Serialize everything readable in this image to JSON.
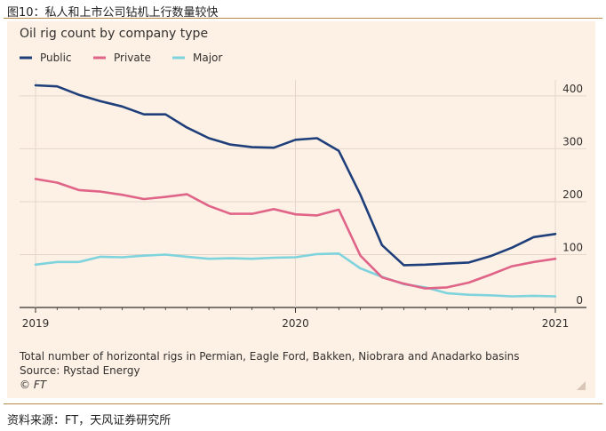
{
  "figure_caption": "图10：私人和上市公司钻机上行数量较快",
  "source_line": "资料来源：FT，天风证券研究所",
  "colors": {
    "panel_bg": "#fdf1e6",
    "rule": "#b58a4a",
    "public": "#1f3f7a",
    "private": "#e06487",
    "major": "#7fd3dd",
    "grid": "#e4d6ca",
    "axis": "#33302e"
  },
  "chart_data": {
    "type": "line",
    "title": "Oil rig count by company type",
    "xlabel": "",
    "ylabel": "",
    "x_range": [
      2019.0,
      2021.0
    ],
    "ylim": [
      0,
      420
    ],
    "y_ticks": [
      0,
      100,
      200,
      300,
      400
    ],
    "x_ticks": [
      {
        "value": 2019.0,
        "label": "2019"
      },
      {
        "value": 2020.0,
        "label": "2020"
      },
      {
        "value": 2021.0,
        "label": "2021"
      }
    ],
    "grid": true,
    "legend_position": "top-left",
    "x": [
      2019.0,
      2019.083,
      2019.167,
      2019.25,
      2019.333,
      2019.417,
      2019.5,
      2019.583,
      2019.667,
      2019.75,
      2019.833,
      2019.917,
      2020.0,
      2020.083,
      2020.167,
      2020.25,
      2020.333,
      2020.417,
      2020.5,
      2020.583,
      2020.667,
      2020.75,
      2020.833,
      2020.917,
      2021.0
    ],
    "series": [
      {
        "name": "Public",
        "color_key": "public",
        "values": [
          420,
          418,
          402,
          390,
          380,
          365,
          365,
          340,
          320,
          308,
          303,
          302,
          317,
          320,
          296,
          213,
          118,
          80,
          81,
          83,
          85,
          97,
          113,
          133,
          139
        ]
      },
      {
        "name": "Private",
        "color_key": "private",
        "values": [
          243,
          236,
          222,
          219,
          213,
          205,
          209,
          214,
          192,
          177,
          177,
          186,
          176,
          174,
          185,
          98,
          57,
          45,
          36,
          38,
          47,
          62,
          78,
          86,
          92
        ]
      },
      {
        "name": "Major",
        "color_key": "major",
        "values": [
          81,
          86,
          86,
          96,
          95,
          98,
          100,
          96,
          92,
          93,
          92,
          94,
          95,
          101,
          102,
          74,
          58,
          44,
          38,
          27,
          24,
          23,
          21,
          22,
          21
        ]
      }
    ],
    "notes": {
      "description": "Total number of horizontal rigs in Permian, Eagle Ford, Bakken, Niobrara and Anadarko basins",
      "source": "Source: Rystad Energy",
      "credit": "© FT"
    }
  }
}
